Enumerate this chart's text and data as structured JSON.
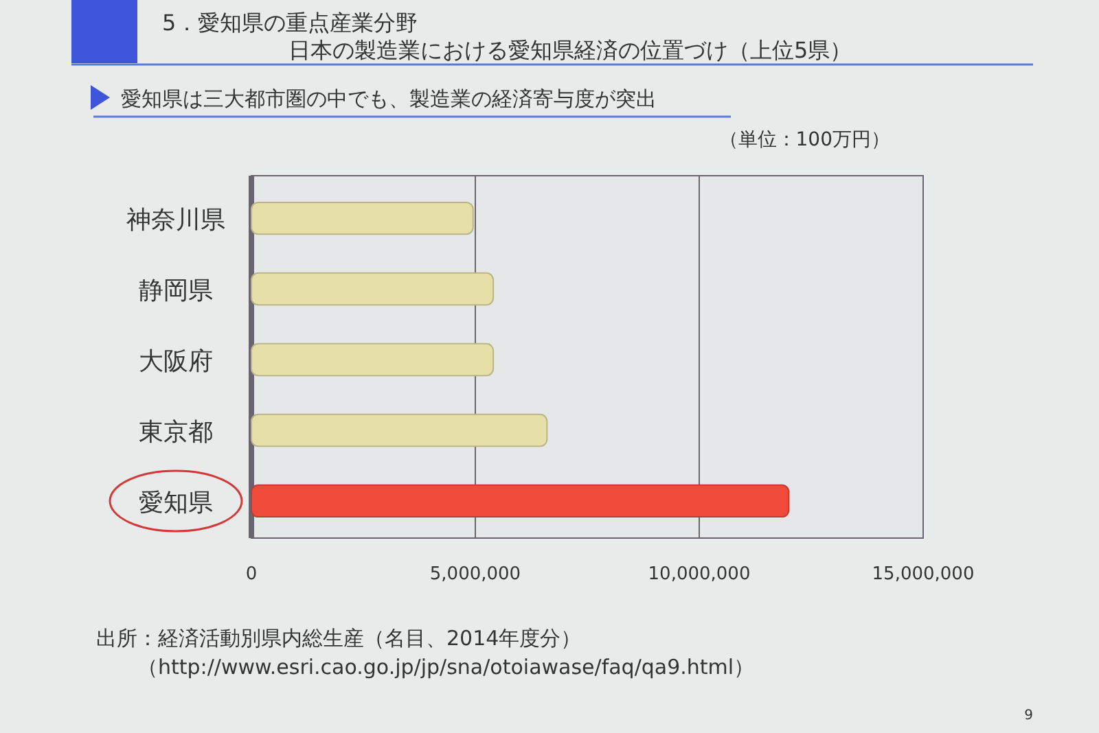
{
  "chart_data": {
    "type": "bar",
    "orientation": "horizontal",
    "title": "5．愛知県の重点産業分野",
    "subtitle": "日本の製造業における愛知県経済の位置づけ（上位5県）",
    "categories": [
      "神奈川県",
      "静岡県",
      "大阪府",
      "東京都",
      "愛知県"
    ],
    "values": [
      4950000,
      5400000,
      5400000,
      6600000,
      12000000
    ],
    "colors": [
      "#e6e0a8",
      "#e6e0a8",
      "#e6e0a8",
      "#e6e0a8",
      "#f04a3a"
    ],
    "xlim": [
      0,
      15000000
    ],
    "xticks": [
      {
        "value": 0,
        "label": "0"
      },
      {
        "value": 5000000,
        "label": "5,000,000"
      },
      {
        "value": 10000000,
        "label": "10,000,000"
      },
      {
        "value": 15000000,
        "label": "15,000,000"
      }
    ],
    "grid": "x",
    "annotations": [
      "愛知県は三大都市圏の中でも、製造業の経済寄与度が突出",
      "（単位：100万円）",
      "出所：経済活動別県内総生産（名目、2014年度分）",
      "（http://www.esri.cao.go.jp/jp/sna/otoiawase/faq/qa9.html）",
      "9"
    ]
  }
}
